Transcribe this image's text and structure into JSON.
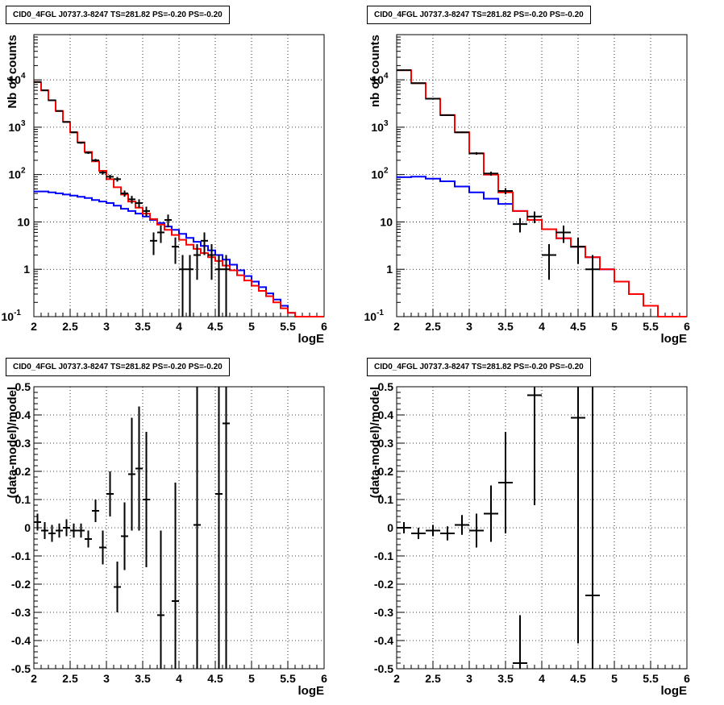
{
  "panels": [
    {
      "title": "CID0_4FGL J0737.3-8247 TS=281.82 PS=-0.20 PS=-0.20",
      "xlabel": "logE",
      "ylabel": "Nb of counts"
    },
    {
      "title": "CID0_4FGL J0737.3-8247 TS=281.82 PS=-0.20 PS=-0.20",
      "xlabel": "logE",
      "ylabel": "nb of counts"
    },
    {
      "title": "CID0_4FGL J0737.3-8247 TS=281.82 PS=-0.20 PS=-0.20",
      "xlabel": "logE",
      "ylabel": "(data-model)/model"
    },
    {
      "title": "CID0_4FGL J0737.3-8247 TS=281.82 PS=-0.20 PS=-0.20",
      "xlabel": "logE",
      "ylabel": "(data-model)/model"
    }
  ],
  "chart_data": [
    {
      "type": "line",
      "title": "CID0_4FGL J0737.3-8247 TS=281.82 PS=-0.20 PS=-0.20",
      "xlabel": "logE",
      "ylabel": "Nb of counts",
      "xlim": [
        2,
        6
      ],
      "ylim": [
        0.1,
        90000
      ],
      "yscale": "log",
      "grid": true,
      "colors": {
        "total": "#ff0000",
        "background": "#0000ff",
        "data": "#000000"
      },
      "bin_edges": [
        2.0,
        2.1,
        2.2,
        2.3,
        2.4,
        2.5,
        2.6,
        2.7,
        2.8,
        2.9,
        3.0,
        3.1,
        3.2,
        3.3,
        3.4,
        3.5,
        3.6,
        3.7,
        3.8,
        3.9,
        4.0,
        4.1,
        4.2,
        4.3,
        4.4,
        4.5,
        4.6,
        4.7,
        4.8,
        4.9,
        5.0,
        5.1,
        5.2,
        5.3,
        5.4,
        5.5,
        5.6,
        5.7,
        5.8,
        5.9,
        6.0
      ],
      "series": [
        {
          "values": [
            9000,
            6000,
            3700,
            2200,
            1300,
            780,
            480,
            300,
            190,
            120,
            80,
            54,
            38,
            27,
            20,
            15,
            11.5,
            8.8,
            6.8,
            5.3,
            4.2,
            3.3,
            2.7,
            2.2,
            1.8,
            1.5,
            1.2,
            0.95,
            0.75,
            0.58,
            0.45,
            0.35,
            0.27,
            0.2,
            0.15,
            0.12,
            0.1,
            0.1,
            0.1,
            0.1
          ]
        },
        {
          "values": [
            44,
            44,
            42,
            40,
            38,
            36,
            34,
            32,
            29,
            27,
            25,
            22,
            19,
            17,
            15,
            13,
            11,
            9.5,
            8,
            6.8,
            5.6,
            4.6,
            3.8,
            3.1,
            2.5,
            2.0,
            1.6,
            1.25,
            0.95,
            0.72,
            0.55,
            0.42,
            0.31,
            0.23,
            0.17,
            0.12,
            0.1,
            0.1,
            0.1,
            0.1
          ]
        }
      ],
      "points": [
        {
          "x": 2.05,
          "y": 9000,
          "err": 100
        },
        {
          "x": 2.15,
          "y": 6000,
          "err": 80
        },
        {
          "x": 2.25,
          "y": 3700,
          "err": 60
        },
        {
          "x": 2.35,
          "y": 2200,
          "err": 47
        },
        {
          "x": 2.45,
          "y": 1290,
          "err": 36
        },
        {
          "x": 2.55,
          "y": 780,
          "err": 28
        },
        {
          "x": 2.65,
          "y": 470,
          "err": 22
        },
        {
          "x": 2.75,
          "y": 290,
          "err": 17
        },
        {
          "x": 2.85,
          "y": 200,
          "err": 14
        },
        {
          "x": 2.95,
          "y": 110,
          "err": 10
        },
        {
          "x": 3.05,
          "y": 90,
          "err": 9
        },
        {
          "x": 3.15,
          "y": 80,
          "err": 9
        },
        {
          "x": 3.25,
          "y": 40,
          "err": 6
        },
        {
          "x": 3.35,
          "y": 30,
          "err": 5.5
        },
        {
          "x": 3.45,
          "y": 25,
          "err": 5
        },
        {
          "x": 3.55,
          "y": 17,
          "err": 4
        },
        {
          "x": 3.65,
          "y": 4,
          "err": 2
        },
        {
          "x": 3.75,
          "y": 6,
          "err": 2.4
        },
        {
          "x": 3.85,
          "y": 11,
          "err": 3.3
        },
        {
          "x": 3.95,
          "y": 3,
          "err": 1.7
        },
        {
          "x": 4.05,
          "y": 1,
          "err": 1
        },
        {
          "x": 4.15,
          "y": 1,
          "err": 1
        },
        {
          "x": 4.25,
          "y": 2,
          "err": 1.4
        },
        {
          "x": 4.35,
          "y": 4,
          "err": 2
        },
        {
          "x": 4.45,
          "y": 2,
          "err": 1.4
        },
        {
          "x": 4.55,
          "y": 1,
          "err": 1
        },
        {
          "x": 4.65,
          "y": 1,
          "err": 1
        }
      ]
    },
    {
      "type": "line",
      "title": "CID0_4FGL J0737.3-8247 TS=281.82 PS=-0.20 PS=-0.20",
      "xlabel": "logE",
      "ylabel": "nb of counts",
      "xlim": [
        2,
        6
      ],
      "ylim": [
        0.1,
        90000
      ],
      "yscale": "log",
      "grid": true,
      "colors": {
        "total": "#ff0000",
        "background": "#0000ff",
        "data": "#000000"
      },
      "bin_edges": [
        2.0,
        2.2,
        2.4,
        2.6,
        2.8,
        3.0,
        3.2,
        3.4,
        3.6,
        3.8,
        4.0,
        4.2,
        4.4,
        4.6,
        4.8,
        5.0,
        5.2,
        5.4,
        5.6,
        5.8,
        6.0
      ],
      "series": [
        {
          "values": [
            16000,
            8500,
            4000,
            1800,
            780,
            280,
            100,
            42,
            17,
            11,
            7,
            4.5,
            3.0,
            1.8,
            1.0,
            0.55,
            0.3,
            0.17,
            0.1,
            0.1
          ]
        },
        {
          "values": [
            88,
            90,
            82,
            72,
            56,
            42,
            31,
            24,
            17,
            11,
            7,
            4.5,
            3.0,
            1.8,
            1.0,
            0.55,
            0.3,
            0.17,
            0.1,
            0.1
          ]
        }
      ],
      "points": [
        {
          "x": 2.1,
          "y": 16000,
          "err": 130
        },
        {
          "x": 2.3,
          "y": 8500,
          "err": 92
        },
        {
          "x": 2.5,
          "y": 4000,
          "err": 63
        },
        {
          "x": 2.7,
          "y": 1800,
          "err": 42
        },
        {
          "x": 2.9,
          "y": 780,
          "err": 28
        },
        {
          "x": 3.1,
          "y": 280,
          "err": 17
        },
        {
          "x": 3.3,
          "y": 105,
          "err": 10
        },
        {
          "x": 3.5,
          "y": 45,
          "err": 6.7
        },
        {
          "x": 3.7,
          "y": 9,
          "err": 3
        },
        {
          "x": 3.9,
          "y": 13,
          "err": 3.6
        },
        {
          "x": 4.1,
          "y": 2,
          "err": 1.4
        },
        {
          "x": 4.3,
          "y": 6,
          "err": 2.4
        },
        {
          "x": 4.5,
          "y": 3,
          "err": 1.7
        },
        {
          "x": 4.7,
          "y": 1,
          "err": 1
        }
      ]
    },
    {
      "type": "scatter",
      "title": "CID0_4FGL J0737.3-8247 TS=281.82 PS=-0.20 PS=-0.20",
      "xlabel": "logE",
      "ylabel": "(data-model)/model",
      "xlim": [
        2,
        6
      ],
      "ylim": [
        -0.5,
        0.5
      ],
      "grid": true,
      "xerr": 0.05,
      "points": [
        {
          "x": 2.05,
          "y": 0.02,
          "err": 0.03
        },
        {
          "x": 2.15,
          "y": -0.01,
          "err": 0.03
        },
        {
          "x": 2.25,
          "y": -0.02,
          "err": 0.03
        },
        {
          "x": 2.35,
          "y": -0.01,
          "err": 0.025
        },
        {
          "x": 2.45,
          "y": 0.0,
          "err": 0.03
        },
        {
          "x": 2.55,
          "y": -0.01,
          "err": 0.025
        },
        {
          "x": 2.65,
          "y": -0.01,
          "err": 0.025
        },
        {
          "x": 2.75,
          "y": -0.04,
          "err": 0.03
        },
        {
          "x": 2.85,
          "y": 0.06,
          "err": 0.04
        },
        {
          "x": 2.95,
          "y": -0.07,
          "err": 0.06
        },
        {
          "x": 3.05,
          "y": 0.12,
          "err": 0.08
        },
        {
          "x": 3.15,
          "y": -0.21,
          "err": 0.09
        },
        {
          "x": 3.25,
          "y": -0.03,
          "err": 0.12
        },
        {
          "x": 3.35,
          "y": 0.19,
          "err": 0.2
        },
        {
          "x": 3.45,
          "y": 0.21,
          "err": 0.22
        },
        {
          "x": 3.55,
          "y": 0.1,
          "err": 0.24
        },
        {
          "x": 3.75,
          "y": -0.31,
          "err": 0.3
        },
        {
          "x": 3.95,
          "y": -0.26,
          "err": 0.42
        },
        {
          "x": 4.25,
          "y": 0.01,
          "err": 0.6
        },
        {
          "x": 4.55,
          "y": 0.12,
          "err": 0.7
        },
        {
          "x": 4.65,
          "y": 0.37,
          "err": 0.9
        }
      ]
    },
    {
      "type": "scatter",
      "title": "CID0_4FGL J0737.3-8247 TS=281.82 PS=-0.20 PS=-0.20",
      "xlabel": "logE",
      "ylabel": "(data-model)/model",
      "xlim": [
        2,
        6
      ],
      "ylim": [
        -0.5,
        0.5
      ],
      "grid": true,
      "xerr": 0.1,
      "points": [
        {
          "x": 2.1,
          "y": 0.0,
          "err": 0.02
        },
        {
          "x": 2.3,
          "y": -0.02,
          "err": 0.02
        },
        {
          "x": 2.5,
          "y": -0.01,
          "err": 0.02
        },
        {
          "x": 2.7,
          "y": -0.02,
          "err": 0.025
        },
        {
          "x": 2.9,
          "y": 0.01,
          "err": 0.035
        },
        {
          "x": 3.1,
          "y": -0.01,
          "err": 0.06
        },
        {
          "x": 3.3,
          "y": 0.05,
          "err": 0.1
        },
        {
          "x": 3.5,
          "y": 0.16,
          "err": 0.18
        },
        {
          "x": 3.7,
          "y": -0.48,
          "err": 0.17
        },
        {
          "x": 3.9,
          "y": 0.47,
          "err": 0.39
        },
        {
          "x": 4.5,
          "y": 0.39,
          "err": 0.8
        },
        {
          "x": 4.7,
          "y": -0.24,
          "err": 0.9
        }
      ]
    }
  ]
}
